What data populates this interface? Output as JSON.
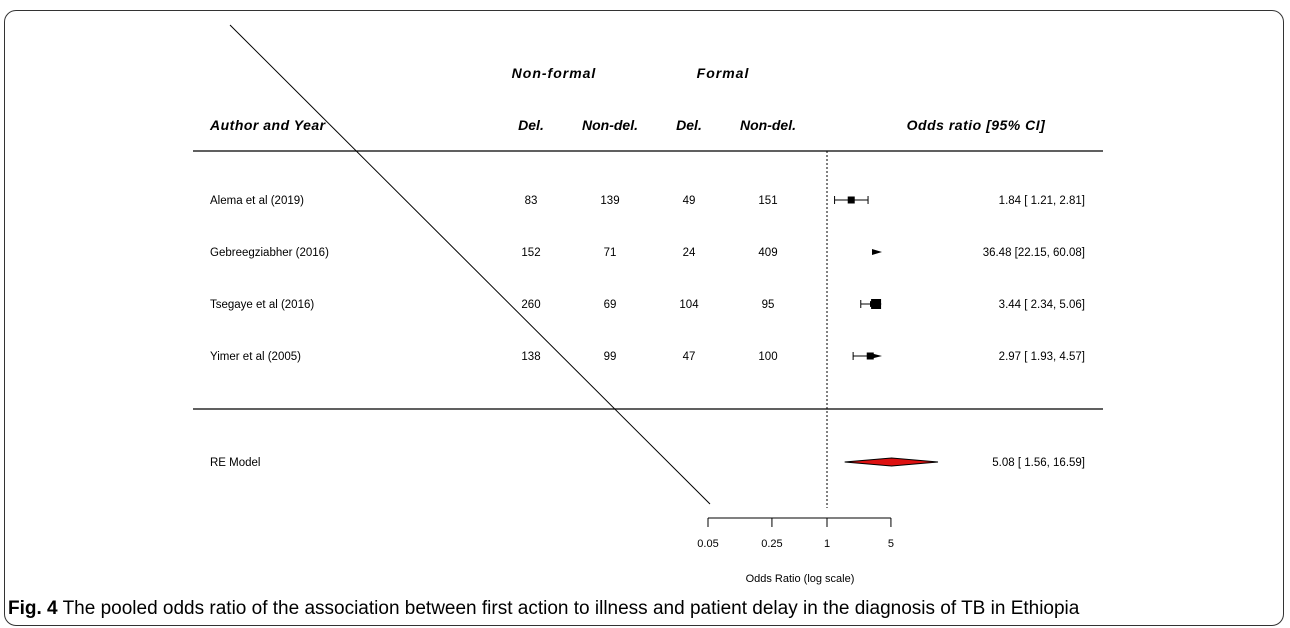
{
  "caption": {
    "label": "Fig. 4",
    "text": "The pooled odds ratio of the association between first action to illness and patient delay in the diagnosis of TB in Ethiopia"
  },
  "colors": {
    "pooled_diamond": "#dd1111",
    "lines": "#000000"
  },
  "chart_data": {
    "type": "forest",
    "group_headers": [
      "Non-formal",
      "Formal"
    ],
    "column_headers": {
      "study": "Author and Year",
      "nf_del": "Del.",
      "nf_nondel": "Non-del.",
      "f_del": "Del.",
      "f_nondel": "Non-del.",
      "estimate": "Odds ratio [95% CI]"
    },
    "studies": [
      {
        "label": "Alema et al (2019)",
        "nf_del": "83",
        "nf_nondel": "139",
        "f_del": "49",
        "f_nondel": "151",
        "or": 1.84,
        "lo": 1.21,
        "hi": 2.81,
        "text": "1.84 [ 1.21,  2.81]"
      },
      {
        "label": "Gebreegziabher (2016)",
        "nf_del": "152",
        "nf_nondel": "71",
        "f_del": "24",
        "f_nondel": "409",
        "or": 36.48,
        "lo": 22.15,
        "hi": 60.08,
        "text": "36.48 [22.15, 60.08]"
      },
      {
        "label": "Tsegaye et al (2016)",
        "nf_del": "260",
        "nf_nondel": "69",
        "f_del": "104",
        "f_nondel": "95",
        "or": 3.44,
        "lo": 2.34,
        "hi": 5.06,
        "text": "3.44 [ 2.34,  5.06]"
      },
      {
        "label": "Yimer et al (2005)",
        "nf_del": "138",
        "nf_nondel": "99",
        "f_del": "47",
        "f_nondel": "100",
        "or": 2.97,
        "lo": 1.93,
        "hi": 4.57,
        "text": "2.97 [ 1.93,  4.57]"
      }
    ],
    "pooled": {
      "label": "RE Model",
      "or": 5.08,
      "lo": 1.56,
      "hi": 16.59,
      "text": "5.08 [ 1.56, 16.59]"
    },
    "x_axis": {
      "ticks": [
        0.05,
        0.25,
        1,
        5
      ],
      "tick_labels": [
        "0.05",
        "0.25",
        "1",
        "5"
      ],
      "label": "Odds Ratio (log scale)",
      "scale": "log",
      "range": [
        0.05,
        5
      ],
      "reference": 1
    }
  }
}
